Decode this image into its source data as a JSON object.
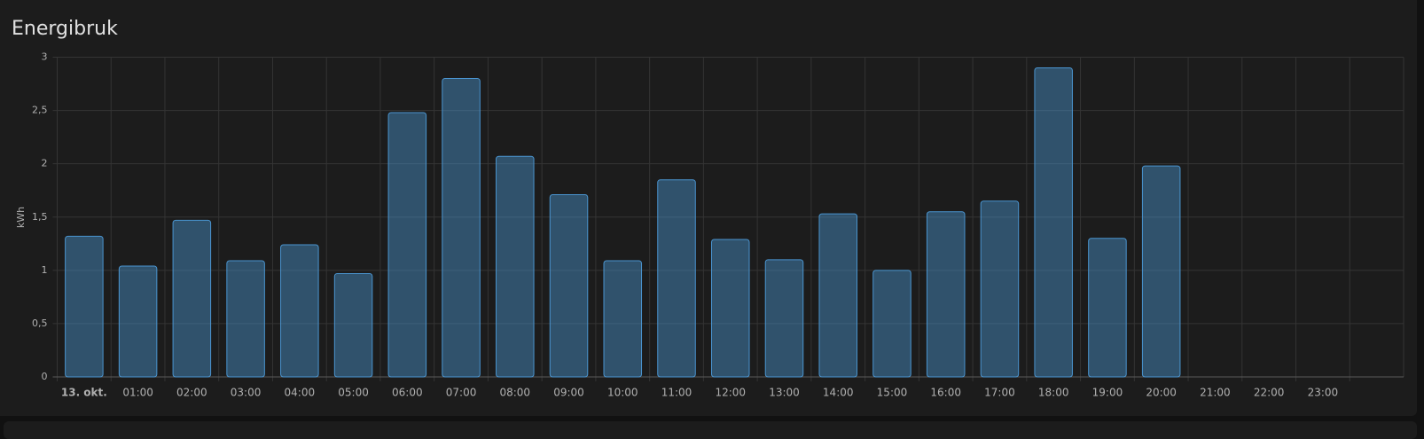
{
  "chart_data": {
    "type": "bar",
    "title": "Energibruk",
    "y_label": "kWh",
    "categories": [
      "13. okt.",
      "01:00",
      "02:00",
      "03:00",
      "04:00",
      "05:00",
      "06:00",
      "07:00",
      "08:00",
      "09:00",
      "10:00",
      "11:00",
      "12:00",
      "13:00",
      "14:00",
      "15:00",
      "16:00",
      "17:00",
      "18:00",
      "19:00",
      "20:00",
      "21:00",
      "22:00",
      "23:00"
    ],
    "values": [
      1.32,
      1.04,
      1.47,
      1.09,
      1.24,
      0.97,
      2.48,
      2.8,
      2.07,
      1.71,
      1.09,
      1.85,
      1.29,
      1.1,
      1.53,
      1.0,
      1.55,
      1.65,
      2.9,
      1.3,
      1.98,
      null,
      null,
      null
    ],
    "color": "#4a94cf",
    "ylim": [
      0,
      3
    ],
    "yticks": [
      0,
      {
        "value": 0.5,
        "label": "0,5"
      },
      1,
      {
        "value": 1.5,
        "label": "1,5"
      },
      2,
      {
        "value": 2.5,
        "label": "2,5"
      },
      3
    ],
    "grid": true
  }
}
